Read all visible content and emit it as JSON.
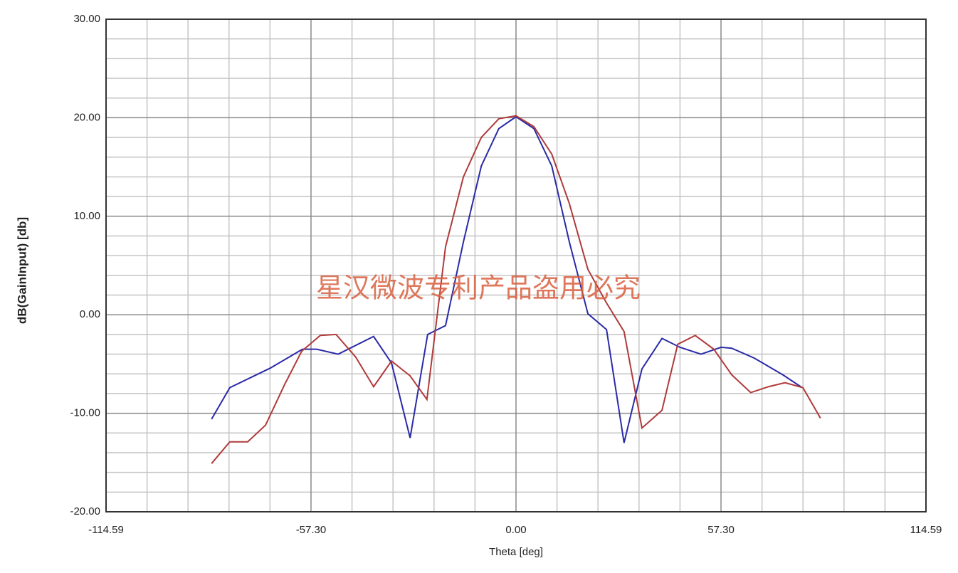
{
  "chart_data": {
    "type": "line",
    "x_label": "Theta [deg]",
    "y_label": "dB(GainInput) [db]",
    "annotation": "星汉微波专利产品盗用必究",
    "xlim": [
      -114.59,
      114.59
    ],
    "ylim": [
      -20,
      30
    ],
    "xticks": [
      -114.59,
      {
        "value": -57.3,
        "label": "-57.30"
      },
      {
        "value": 0,
        "label": "0.00"
      },
      {
        "value": 57.3,
        "label": "57.30"
      },
      114.59
    ],
    "yticks": [
      {
        "value": -20,
        "label": "-20.00"
      },
      {
        "value": -10,
        "label": "-10.00"
      },
      {
        "value": 0,
        "label": "0.00"
      },
      {
        "value": 10,
        "label": "10.00"
      },
      {
        "value": 20,
        "label": "20.00"
      },
      {
        "value": 30,
        "label": "30.00"
      }
    ],
    "grid": true,
    "series": [
      {
        "color": "#2a2aa8",
        "x": [
          -85.1,
          -80,
          -68.6,
          -59.7,
          -55.7,
          -49.7,
          -39.8,
          -34.8,
          -29.6,
          -24.7,
          -19.7,
          -14.7,
          -9.7,
          -4.8,
          0,
          5,
          10,
          14.9,
          20.1,
          25.3,
          30.2,
          35.2,
          40.8,
          45.8,
          51.7,
          57.3,
          60.3,
          66.6,
          74.6,
          80
        ],
        "values": [
          -10.6,
          -7.4,
          -5.4,
          -3.5,
          -3.5,
          -4.0,
          -2.2,
          -4.9,
          -12.5,
          -2.0,
          -1.1,
          7.4,
          15.1,
          18.9,
          20.1,
          18.9,
          15.1,
          7.4,
          0.1,
          -1.5,
          -13,
          -5.5,
          -2.4,
          -3.3,
          -4.0,
          -3.3,
          -3.4,
          -4.4,
          -6.1,
          -7.4
        ]
      },
      {
        "color": "#b03a3a",
        "x": [
          -85.1,
          -80,
          -75,
          -70,
          -64.7,
          -59.9,
          -54.7,
          -50.3,
          -44.8,
          -39.8,
          -34.8,
          -29.6,
          -24.9,
          -19.7,
          -14.7,
          -9.7,
          -4.8,
          0,
          5,
          10,
          14.9,
          20.1,
          25.3,
          30.2,
          35.2,
          40.8,
          45.2,
          50.1,
          55.3,
          60.3,
          65.6,
          70.6,
          75.2,
          80.2,
          85.1
        ],
        "values": [
          -15.1,
          -12.9,
          -12.9,
          -11.2,
          -7.1,
          -3.7,
          -2.1,
          -2.0,
          -4.3,
          -7.3,
          -4.7,
          -6.2,
          -8.6,
          6.9,
          14,
          18,
          19.9,
          20.2,
          19.1,
          16.3,
          11.3,
          4.6,
          1.2,
          -1.7,
          -11.5,
          -9.7,
          -3.0,
          -2.1,
          -3.5,
          -6.1,
          -7.9,
          -7.3,
          -6.9,
          -7.4,
          -10.5
        ]
      }
    ]
  }
}
